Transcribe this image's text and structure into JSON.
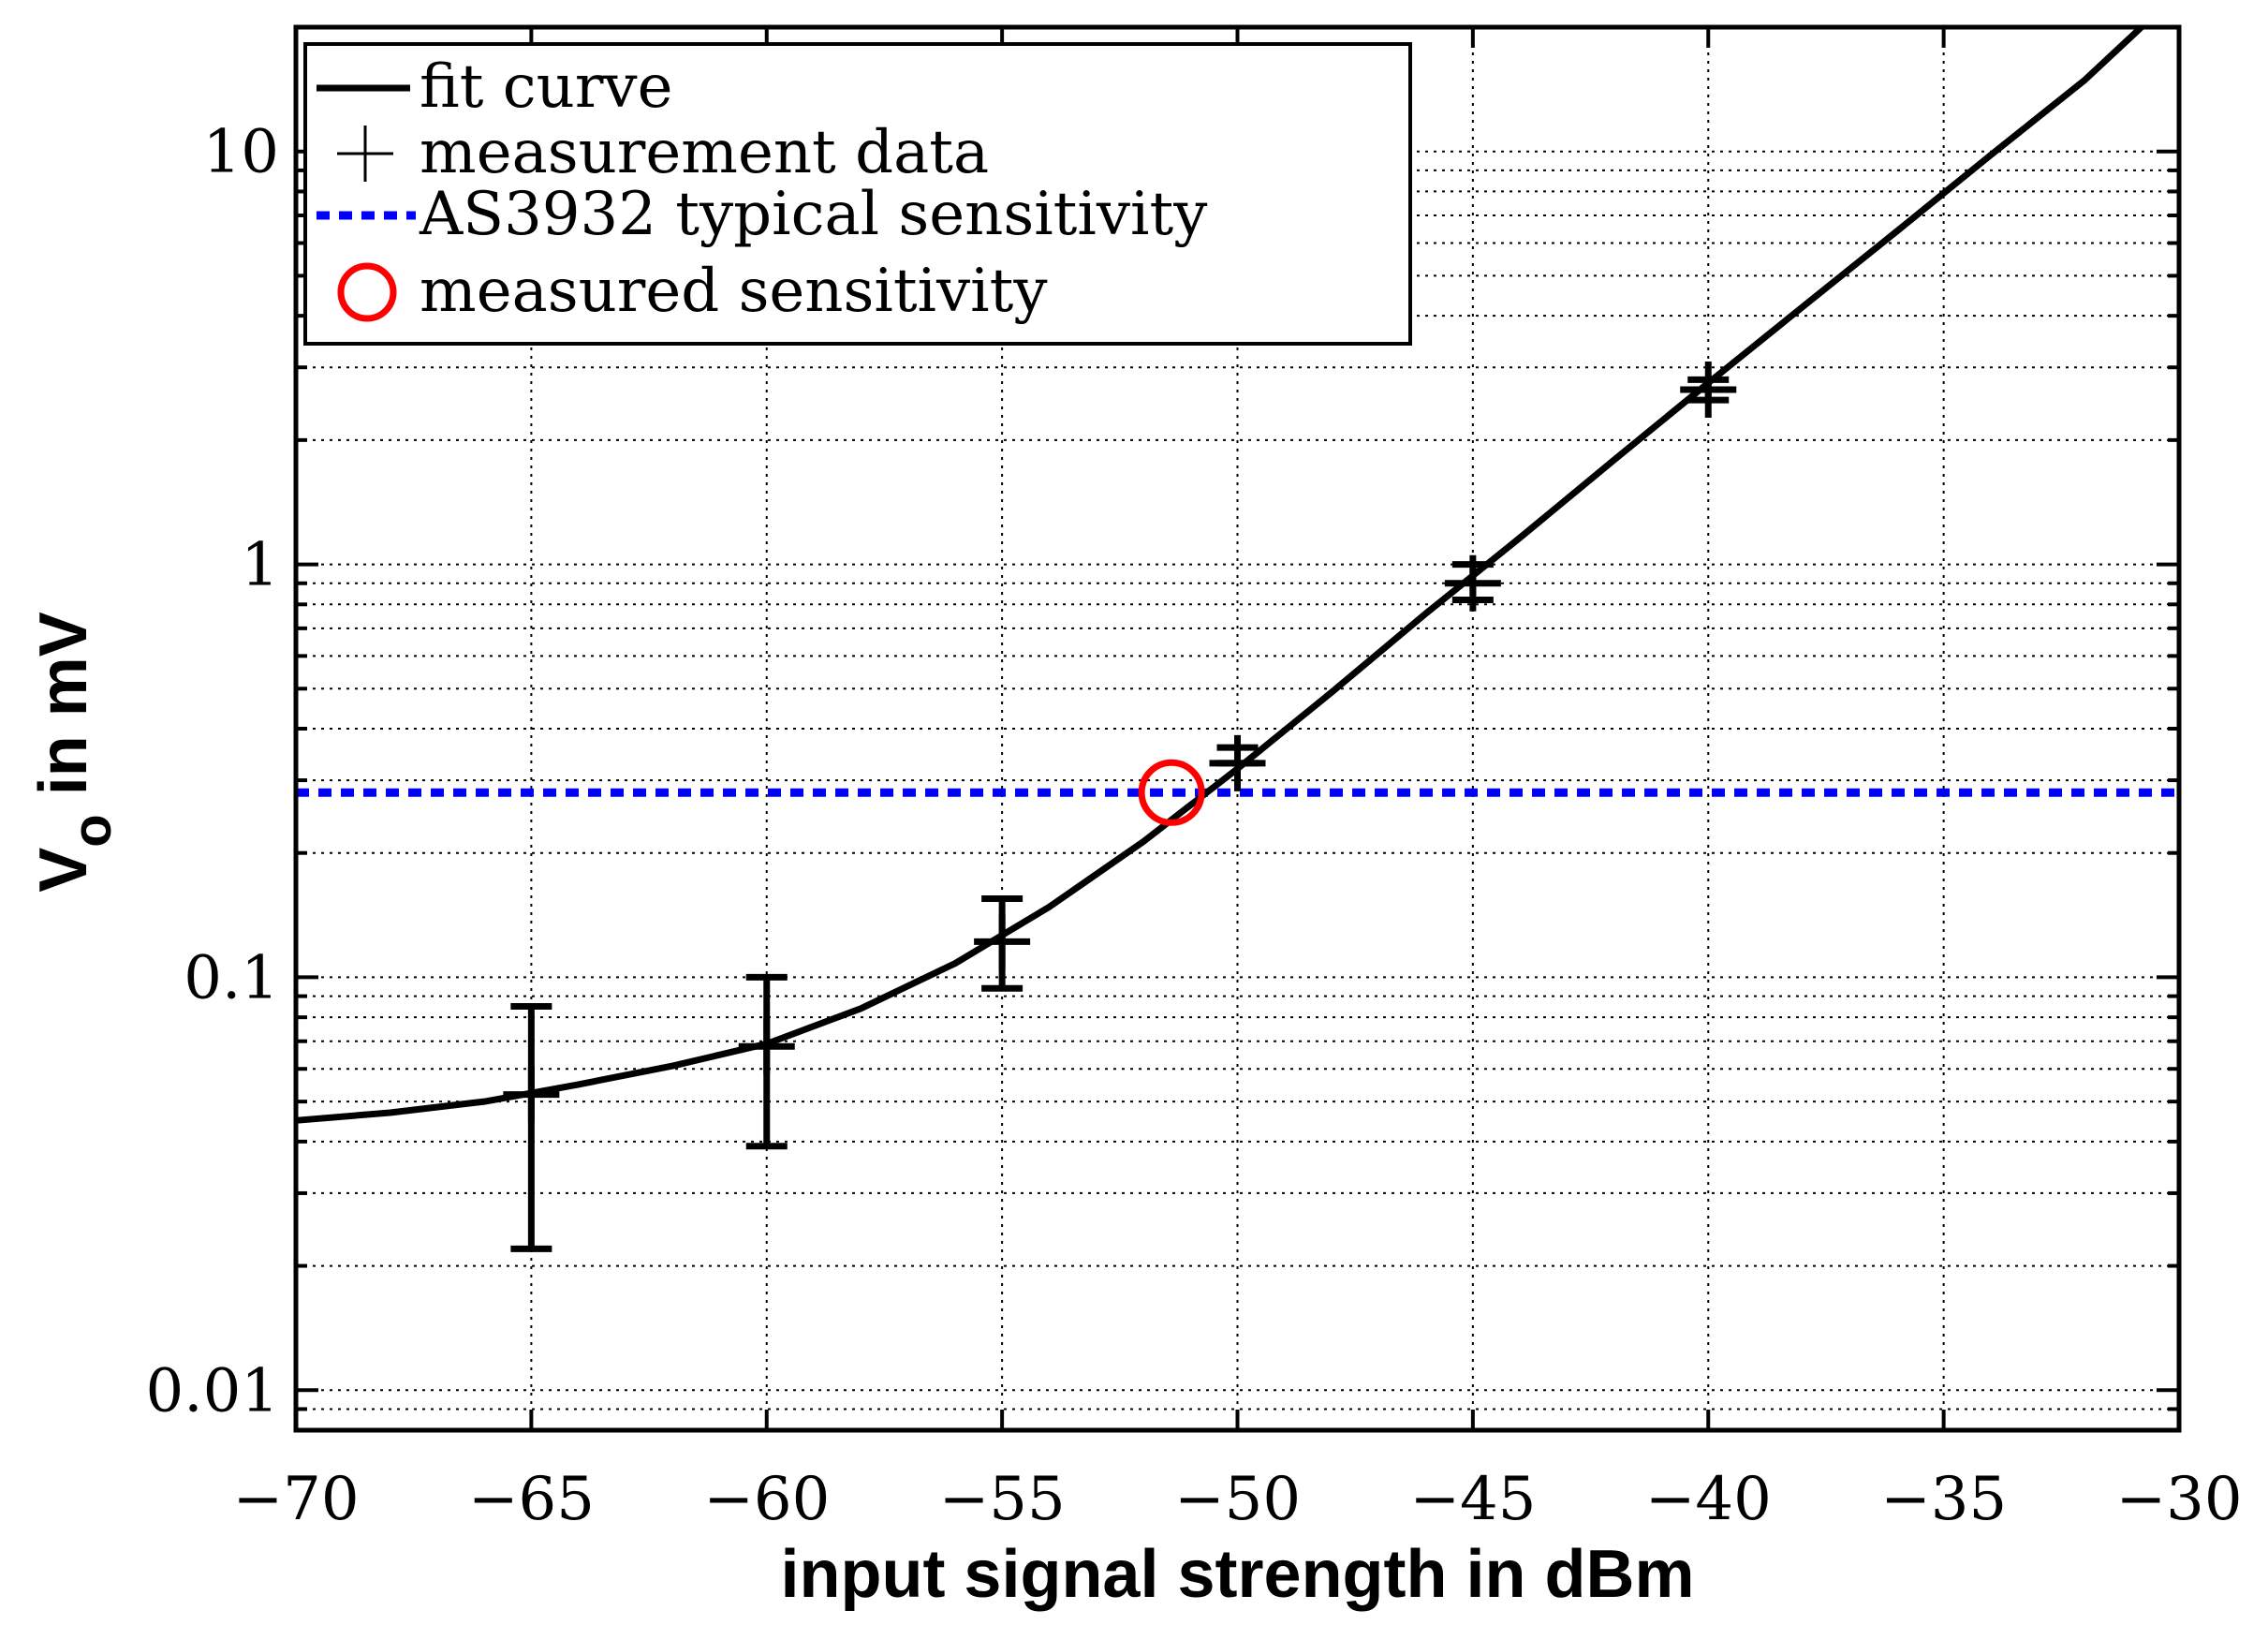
{
  "chart_data": {
    "type": "line",
    "xlabel": "input signal strength in dBm",
    "ylabel_main": "V",
    "ylabel_sub": "o",
    "ylabel_rest": " in mV",
    "x_range": [
      -70,
      -30
    ],
    "y_range": [
      0.008,
      20
    ],
    "y_scale": "log",
    "grid": "on",
    "legend_location": "top-left",
    "x_ticks": [
      -70,
      -65,
      -60,
      -55,
      -50,
      -45,
      -40,
      -35,
      -30
    ],
    "x_tick_labels": [
      "−70",
      "−65",
      "−60",
      "−55",
      "−50",
      "−45",
      "−40",
      "−35",
      "−30"
    ],
    "y_ticks": [
      0.01,
      0.1,
      1,
      10
    ],
    "y_tick_labels": [
      "0.01",
      "0.1",
      "1",
      "10"
    ],
    "series": [
      {
        "name": "fit curve",
        "style": "solid",
        "color": "#000000",
        "x": [
          -70,
          -68,
          -66,
          -64,
          -62,
          -60,
          -58,
          -56,
          -54,
          -52,
          -50,
          -48,
          -46,
          -44,
          -42,
          -40,
          -38,
          -36,
          -34,
          -32,
          -30.8
        ],
        "y": [
          0.045,
          0.047,
          0.05,
          0.055,
          0.061,
          0.069,
          0.084,
          0.108,
          0.148,
          0.213,
          0.32,
          0.49,
          0.76,
          1.16,
          1.79,
          2.75,
          4.2,
          6.4,
          9.8,
          14.9,
          20
        ]
      },
      {
        "name": "measurement data",
        "marker": "+",
        "color": "#000000",
        "x": [
          -65,
          -60,
          -55,
          -50,
          -45,
          -40
        ],
        "y": [
          0.052,
          0.068,
          0.122,
          0.33,
          0.9,
          2.65
        ],
        "err_low": [
          0.022,
          0.039,
          0.094,
          0.33,
          0.82,
          2.5
        ],
        "err_high": [
          0.085,
          0.1,
          0.155,
          0.36,
          1.0,
          2.8
        ]
      },
      {
        "name": "AS3932 typical sensitivity",
        "style": "dashed",
        "color": "#0000ff",
        "y_constant": 0.28
      },
      {
        "name": "measured sensitivity",
        "marker": "circle",
        "color": "#ff0000",
        "x": [
          -51.4
        ],
        "y": [
          0.28
        ]
      }
    ]
  }
}
